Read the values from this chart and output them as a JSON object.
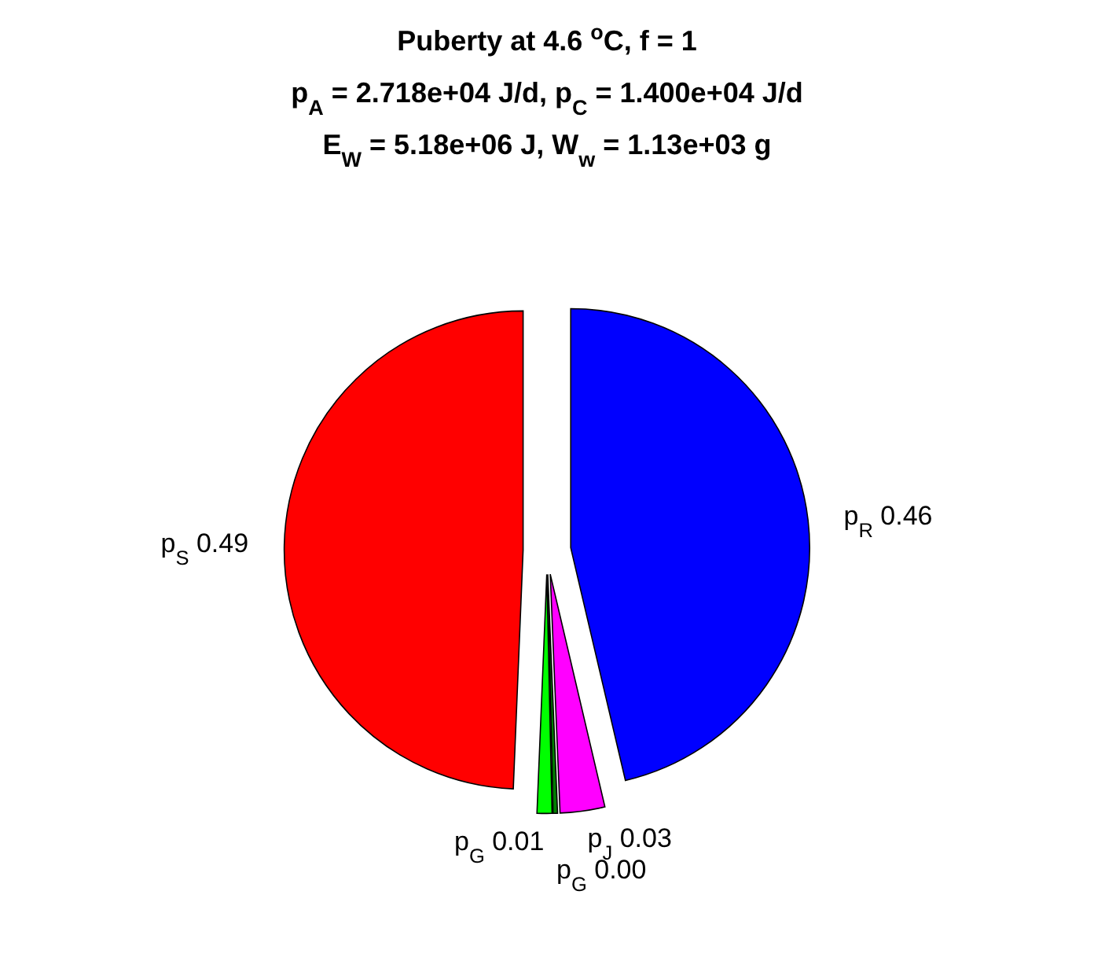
{
  "chart_data": {
    "type": "pie",
    "title": "Puberty at 4.6 $^{o}$C, f = 1\np$_{A}$ = 2.718e+04 J/d,  p$_{C}$ = 1.400e+04 J/d\nE$_{W}$ = 5.18e+06 J, W$_{w}$ = 1.13e+03 g",
    "categories": [
      "p$_{R}$",
      "p$_{J}$",
      "p$_{G}$",
      "p$_{G}$",
      "p$_{S}$"
    ],
    "values": [
      0.46,
      0.03,
      0.003,
      0.01,
      0.49
    ],
    "value_labels": [
      "0.46",
      "0.03",
      "0.00",
      "0.01",
      "0.49"
    ],
    "colors": [
      "#0000ff",
      "#ff00ff",
      "#008000",
      "#00ff00",
      "#ff0000"
    ]
  }
}
